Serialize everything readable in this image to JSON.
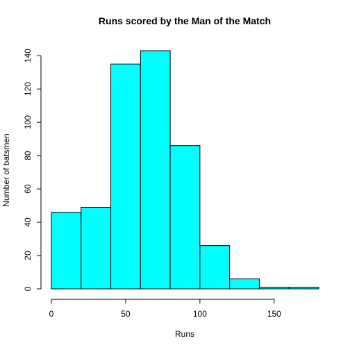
{
  "chart_data": {
    "type": "bar",
    "title": "Runs scored by the Man of the Match",
    "xlabel": "Runs",
    "ylabel": "Number of batsmen",
    "bins": [
      {
        "start": 0,
        "end": 20,
        "count": 46
      },
      {
        "start": 20,
        "end": 40,
        "count": 49
      },
      {
        "start": 40,
        "end": 60,
        "count": 135
      },
      {
        "start": 60,
        "end": 80,
        "count": 143
      },
      {
        "start": 80,
        "end": 100,
        "count": 86
      },
      {
        "start": 100,
        "end": 120,
        "count": 26
      },
      {
        "start": 120,
        "end": 140,
        "count": 6
      },
      {
        "start": 140,
        "end": 160,
        "count": 1
      },
      {
        "start": 160,
        "end": 180,
        "count": 1
      }
    ],
    "xlim": [
      0,
      180
    ],
    "ylim": [
      0,
      143
    ],
    "x_ticks": [
      "0",
      "50",
      "100",
      "150"
    ],
    "y_ticks": [
      "0",
      "20",
      "40",
      "60",
      "80",
      "100",
      "120",
      "140"
    ],
    "bar_color": "#00FFFF",
    "grid": false
  }
}
